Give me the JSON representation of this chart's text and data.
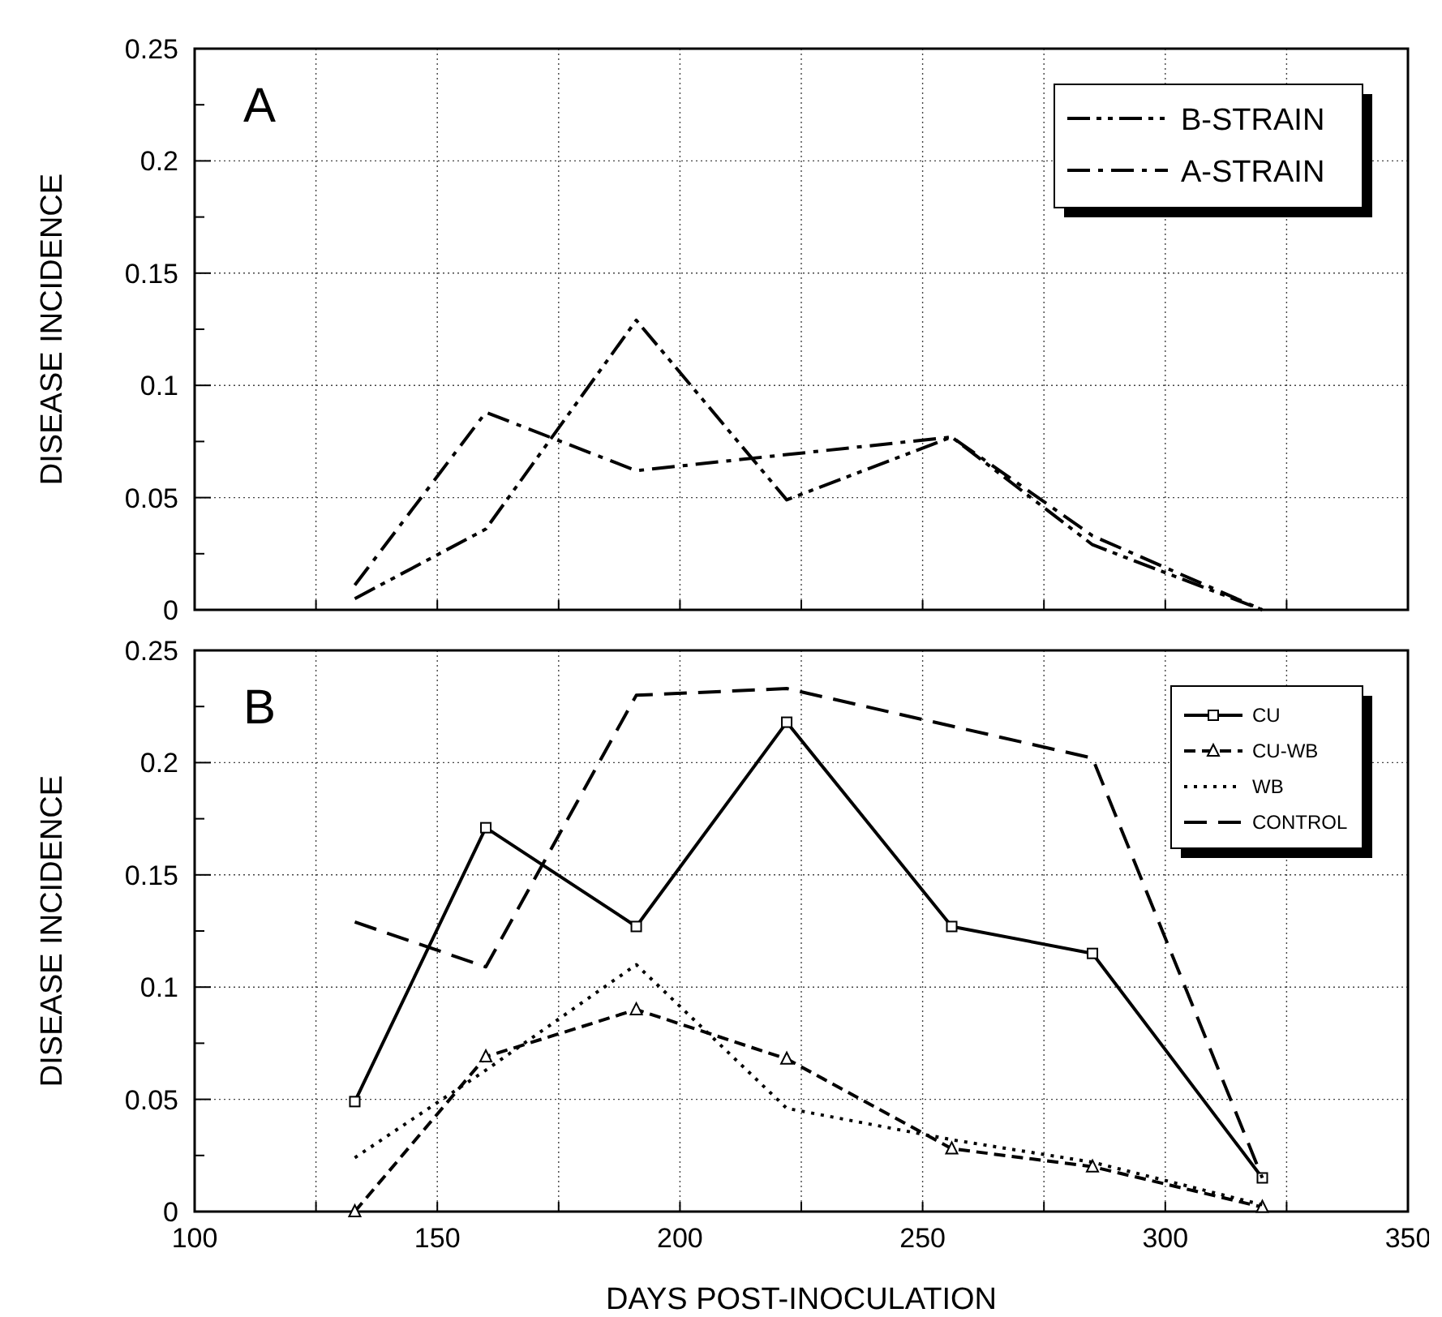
{
  "chart_data": [
    {
      "type": "line",
      "ylabel": "DISEASE INCIDENCE",
      "annotations": [
        "A"
      ],
      "xlim": [
        100,
        350
      ],
      "ylim": [
        0,
        0.25
      ],
      "xticks": [
        100,
        {
          "value": 125,
          "label": null
        },
        150,
        {
          "value": 175,
          "label": null
        },
        200,
        {
          "value": 225,
          "label": null
        },
        250,
        {
          "value": 275,
          "label": null
        },
        300,
        {
          "value": 325,
          "label": null
        },
        350
      ],
      "yticks": [
        0,
        {
          "value": 0.025,
          "label": null
        },
        0.05,
        {
          "value": 0.075,
          "label": null
        },
        0.1,
        {
          "value": 0.125,
          "label": null
        },
        0.15,
        {
          "value": 0.175,
          "label": null
        },
        0.2,
        {
          "value": 0.225,
          "label": null
        },
        0.25
      ],
      "tick_labels": "y",
      "grid": true,
      "legend": "top right",
      "marker": "none",
      "series": [
        {
          "name": "B-STRAIN",
          "color": "#000000",
          "line_style": "dashdotdot",
          "x": [
            133,
            160,
            191,
            222,
            256,
            285,
            320
          ],
          "values": [
            0.005,
            0.036,
            0.129,
            0.049,
            0.077,
            0.029,
            0
          ]
        },
        {
          "name": "A-STRAIN",
          "color": "#000000",
          "line_style": "dashdot",
          "x": [
            133,
            160,
            191,
            256,
            285,
            320
          ],
          "values": [
            0.011,
            0.088,
            0.062,
            0.077,
            0.033,
            0
          ]
        }
      ]
    },
    {
      "type": "line",
      "xlabel": "DAYS POST-INOCULATION",
      "ylabel": "DISEASE INCIDENCE",
      "annotations": [
        "B"
      ],
      "xlim": [
        100,
        350
      ],
      "ylim": [
        0,
        0.25
      ],
      "xticks": [
        100,
        {
          "value": 125,
          "label": null
        },
        150,
        {
          "value": 175,
          "label": null
        },
        200,
        {
          "value": 225,
          "label": null
        },
        250,
        {
          "value": 275,
          "label": null
        },
        300,
        {
          "value": 325,
          "label": null
        },
        350
      ],
      "yticks": [
        0,
        {
          "value": 0.025,
          "label": null
        },
        0.05,
        {
          "value": 0.075,
          "label": null
        },
        0.1,
        {
          "value": 0.125,
          "label": null
        },
        0.15,
        {
          "value": 0.175,
          "label": null
        },
        0.2,
        {
          "value": 0.225,
          "label": null
        },
        0.25
      ],
      "grid": true,
      "legend": "top right",
      "series": [
        {
          "name": "CU",
          "color": "#000000",
          "line_style": "solid",
          "marker": "square",
          "x": [
            133,
            160,
            191,
            222,
            256,
            285,
            320
          ],
          "values": [
            0.049,
            0.171,
            0.127,
            0.218,
            0.127,
            0.115,
            0.015
          ]
        },
        {
          "name": "CU-WB",
          "color": "#000000",
          "line_style": "dashed",
          "marker": "triangle",
          "x": [
            133,
            160,
            191,
            222,
            256,
            285,
            320
          ],
          "values": [
            0,
            0.069,
            0.09,
            0.068,
            0.028,
            0.02,
            0.002
          ]
        },
        {
          "name": "WB",
          "color": "#000000",
          "line_style": "dotted",
          "marker": "none",
          "x": [
            133,
            160,
            191,
            222,
            256,
            285,
            320
          ],
          "values": [
            0.024,
            0.063,
            0.11,
            0.046,
            0.032,
            0.022,
            0.003
          ]
        },
        {
          "name": "CONTROL",
          "color": "#000000",
          "line_style": "longdashed",
          "marker": "none",
          "x": [
            133,
            160,
            191,
            222,
            285,
            320
          ],
          "values": [
            0.129,
            0.109,
            0.23,
            0.233,
            0.202,
            0.015
          ]
        }
      ]
    }
  ]
}
